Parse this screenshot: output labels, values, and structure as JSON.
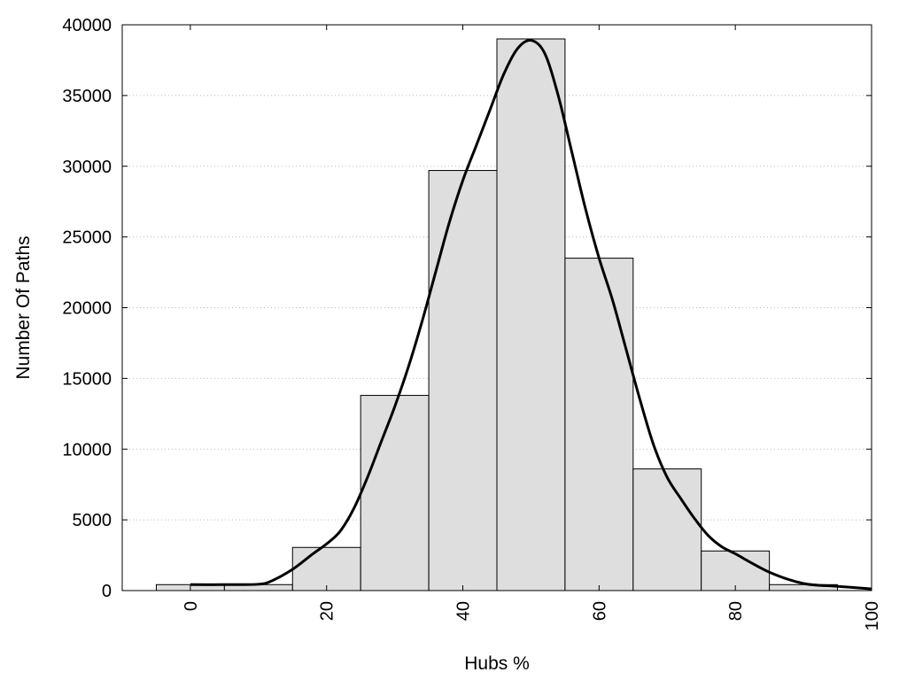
{
  "chart_data": {
    "type": "bar",
    "title": "",
    "xlabel": "Hubs %",
    "ylabel": "Number Of Paths",
    "xlim": [
      -10,
      100
    ],
    "ylim": [
      0,
      40000
    ],
    "xticks": [
      0,
      20,
      40,
      60,
      80,
      100
    ],
    "yticks": [
      0,
      5000,
      10000,
      15000,
      20000,
      25000,
      30000,
      35000,
      40000
    ],
    "grid": "horizontal dotted",
    "bar_color": "#dedede",
    "bar_edge_color": "#000000",
    "bins": [
      {
        "x0": -5,
        "x1": 5,
        "value": 420
      },
      {
        "x0": 5,
        "x1": 15,
        "value": 420
      },
      {
        "x0": 15,
        "x1": 25,
        "value": 3050
      },
      {
        "x0": 25,
        "x1": 35,
        "value": 13800
      },
      {
        "x0": 35,
        "x1": 45,
        "value": 29700
      },
      {
        "x0": 45,
        "x1": 55,
        "value": 39000
      },
      {
        "x0": 55,
        "x1": 65,
        "value": 23500
      },
      {
        "x0": 65,
        "x1": 75,
        "value": 8600
      },
      {
        "x0": 75,
        "x1": 85,
        "value": 2800
      },
      {
        "x0": 85,
        "x1": 95,
        "value": 420
      }
    ],
    "curve": {
      "type": "line",
      "color": "#000000",
      "x": [
        0,
        5,
        10,
        12,
        15,
        18,
        20,
        22,
        24,
        26,
        28,
        30,
        32,
        34,
        36,
        38,
        40,
        42,
        44,
        46,
        48,
        50,
        52,
        54,
        56,
        58,
        60,
        62,
        64,
        66,
        68,
        70,
        72,
        74,
        76,
        78,
        80,
        85,
        90,
        95,
        100
      ],
      "y": [
        420,
        420,
        450,
        700,
        1500,
        2600,
        3300,
        4200,
        5800,
        8000,
        10500,
        13000,
        15800,
        19000,
        22500,
        26000,
        29000,
        31500,
        34000,
        36500,
        38300,
        38900,
        38000,
        35000,
        31000,
        27000,
        23500,
        20500,
        17000,
        13500,
        10300,
        8000,
        6500,
        5100,
        3900,
        3100,
        2600,
        1300,
        500,
        300,
        120
      ]
    }
  }
}
